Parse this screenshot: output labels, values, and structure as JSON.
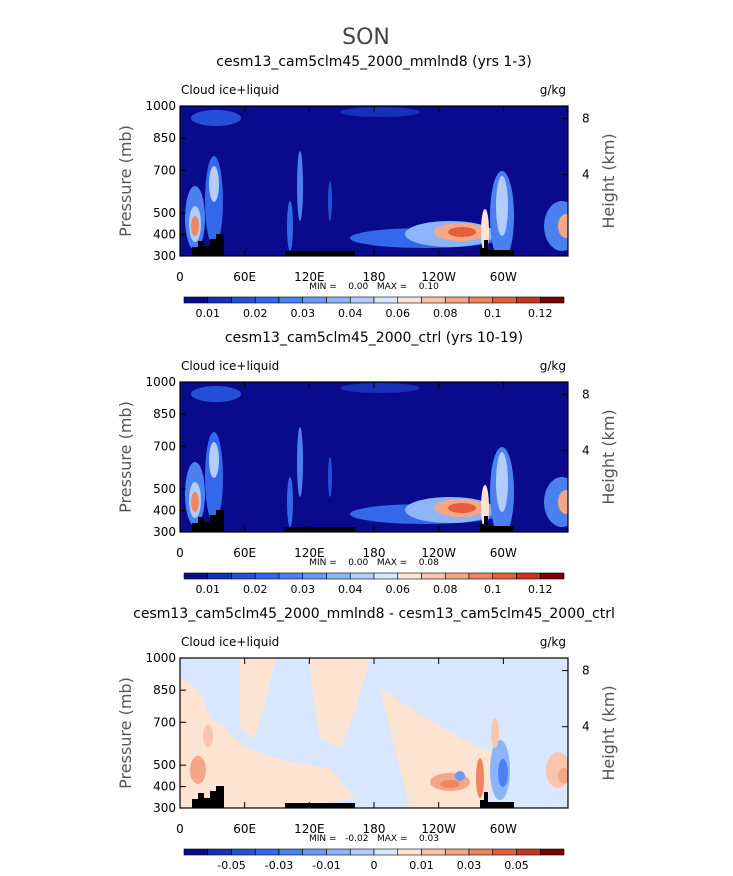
{
  "title": "SON",
  "panels": [
    {
      "type": "contour",
      "title": "cesm13_cam5clm45_2000_mmlnd8 (yrs 1-3)",
      "left_label": "Cloud ice+liquid",
      "right_label": "g/kg",
      "y_axis_label": "Pressure (mb)",
      "y2_axis_label": "Height (km)",
      "ylim": [
        1000,
        300
      ],
      "yticks": [
        300,
        400,
        500,
        700,
        850,
        1000
      ],
      "y2lim": [
        -1.8,
        8.9
      ],
      "y2ticks": [
        8,
        4
      ],
      "xlim": [
        0,
        360
      ],
      "xticks": [
        0,
        {
          "value": 60,
          "label": "60E"
        },
        {
          "value": 120,
          "label": "120E"
        },
        180,
        {
          "value": 240,
          "label": "120W"
        },
        {
          "value": 300,
          "label": "60W"
        }
      ],
      "stats": "MIN =    0.00   MAX =    0.10",
      "colorbar": {
        "colors": [
          "#0a0a8c",
          "#1630b8",
          "#2450d8",
          "#3468ea",
          "#4a80f2",
          "#6a9af6",
          "#8cb4f9",
          "#b2cdfb",
          "#d8e7fd",
          "#fde3d2",
          "#f9c6ad",
          "#f4a686",
          "#ee8560",
          "#e45e3c",
          "#c93322",
          "#7a0000"
        ],
        "labels": [
          0.01,
          0.02,
          0.03,
          0.04,
          0.06,
          0.08,
          0.1,
          0.12
        ]
      }
    },
    {
      "type": "contour",
      "title": "cesm13_cam5clm45_2000_ctrl (yrs 10-19)",
      "left_label": "Cloud ice+liquid",
      "right_label": "g/kg",
      "y_axis_label": "Pressure (mb)",
      "y2_axis_label": "Height (km)",
      "ylim": [
        1000,
        300
      ],
      "yticks": [
        300,
        400,
        500,
        700,
        850,
        1000
      ],
      "y2lim": [
        -1.8,
        8.9
      ],
      "y2ticks": [
        8,
        4
      ],
      "xlim": [
        0,
        360
      ],
      "xticks": [
        0,
        {
          "value": 60,
          "label": "60E"
        },
        {
          "value": 120,
          "label": "120E"
        },
        180,
        {
          "value": 240,
          "label": "120W"
        },
        {
          "value": 300,
          "label": "60W"
        }
      ],
      "stats": "MIN =    0.00   MAX =    0.08",
      "colorbar": {
        "colors": [
          "#0a0a8c",
          "#1630b8",
          "#2450d8",
          "#3468ea",
          "#4a80f2",
          "#6a9af6",
          "#8cb4f9",
          "#b2cdfb",
          "#d8e7fd",
          "#fde3d2",
          "#f9c6ad",
          "#f4a686",
          "#ee8560",
          "#e45e3c",
          "#c93322",
          "#7a0000"
        ],
        "labels": [
          0.01,
          0.02,
          0.03,
          0.04,
          0.06,
          0.08,
          0.1,
          0.12
        ]
      }
    },
    {
      "type": "contour",
      "title": "cesm13_cam5clm45_2000_mmlnd8 - cesm13_cam5clm45_2000_ctrl",
      "left_label": "Cloud ice+liquid",
      "right_label": "g/kg",
      "y_axis_label": "Pressure (mb)",
      "y2_axis_label": "Height (km)",
      "ylim": [
        1000,
        300
      ],
      "yticks": [
        300,
        400,
        500,
        700,
        850,
        1000
      ],
      "y2lim": [
        -1.8,
        8.9
      ],
      "y2ticks": [
        8,
        4
      ],
      "xlim": [
        0,
        360
      ],
      "xticks": [
        0,
        {
          "value": 60,
          "label": "60E"
        },
        {
          "value": 120,
          "label": "120E"
        },
        180,
        {
          "value": 240,
          "label": "120W"
        },
        {
          "value": 300,
          "label": "60W"
        }
      ],
      "stats": "MIN =   -0.02   MAX =    0.03",
      "colorbar": {
        "colors": [
          "#0a0a8c",
          "#1630b8",
          "#2450d8",
          "#3468ea",
          "#4a80f2",
          "#6a9af6",
          "#8cb4f9",
          "#b2cdfb",
          "#d8e7fd",
          "#fde3d2",
          "#f9c6ad",
          "#f4a686",
          "#ee8560",
          "#e45e3c",
          "#c93322",
          "#7a0000"
        ],
        "labels": [
          -0.05,
          -0.03,
          -0.01,
          0,
          0.01,
          0.03,
          0.05
        ]
      }
    }
  ]
}
